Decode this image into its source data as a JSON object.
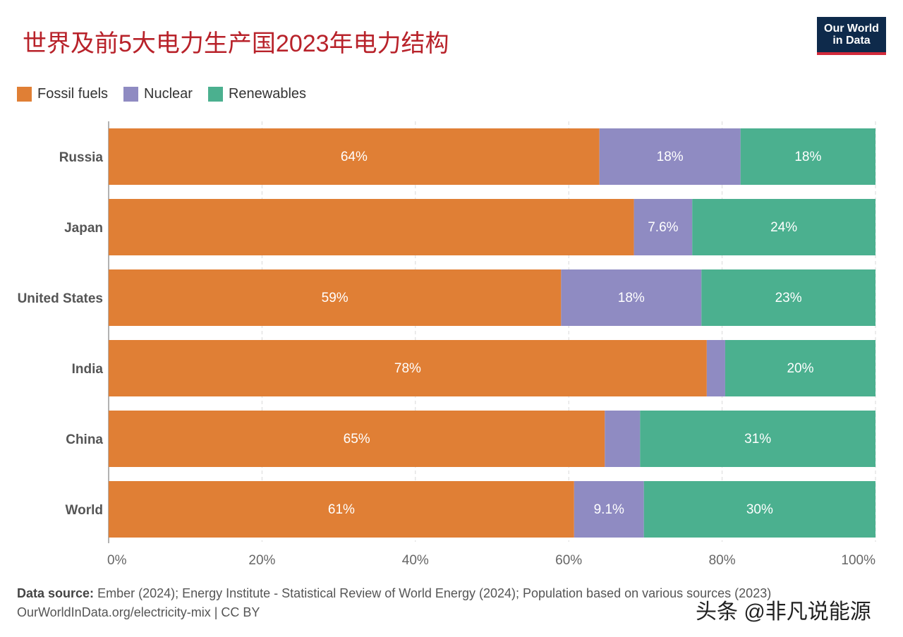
{
  "header": {
    "title": "世界及前5大电力生产国2023年电力结构",
    "logo_line1": "Our World",
    "logo_line2": "in Data"
  },
  "footer": {
    "source_label": "Data source:",
    "source_text": "Ember (2024); Energy Institute - Statistical Review of World Energy (2024); Population based on various sources (2023)",
    "link": "OurWorldInData.org/electricity-mix | CC BY"
  },
  "watermark": "头条 @非凡说能源",
  "colors": {
    "fossil": "#e07f35",
    "nuclear": "#8f8bc2",
    "renewables": "#4bb08f",
    "title": "#b8222a",
    "logo_bg": "#0e2a4b",
    "logo_accent": "#d32a3b"
  },
  "chart_data": {
    "type": "bar",
    "orientation": "horizontal",
    "stacked": true,
    "categories": [
      "Russia",
      "Japan",
      "United States",
      "India",
      "China",
      "World"
    ],
    "series": [
      {
        "name": "Fossil fuels",
        "values": [
          64,
          68.5,
          59,
          78,
          64.7,
          60.7
        ],
        "labels": [
          "64%",
          "",
          "59%",
          "78%",
          "65%",
          "61%"
        ]
      },
      {
        "name": "Nuclear",
        "values": [
          18.4,
          7.6,
          18.3,
          2.4,
          4.6,
          9.1
        ],
        "labels": [
          "18%",
          "7.6%",
          "18%",
          "",
          "",
          "9.1%"
        ]
      },
      {
        "name": "Renewables",
        "values": [
          17.6,
          23.9,
          22.7,
          19.6,
          30.7,
          30.2
        ],
        "labels": [
          "18%",
          "24%",
          "23%",
          "20%",
          "31%",
          "30%"
        ]
      }
    ],
    "xlim": [
      0,
      100
    ],
    "xticks": [
      "0%",
      "20%",
      "40%",
      "60%",
      "80%",
      "100%"
    ],
    "grid": true,
    "legend_position": "top-left"
  }
}
